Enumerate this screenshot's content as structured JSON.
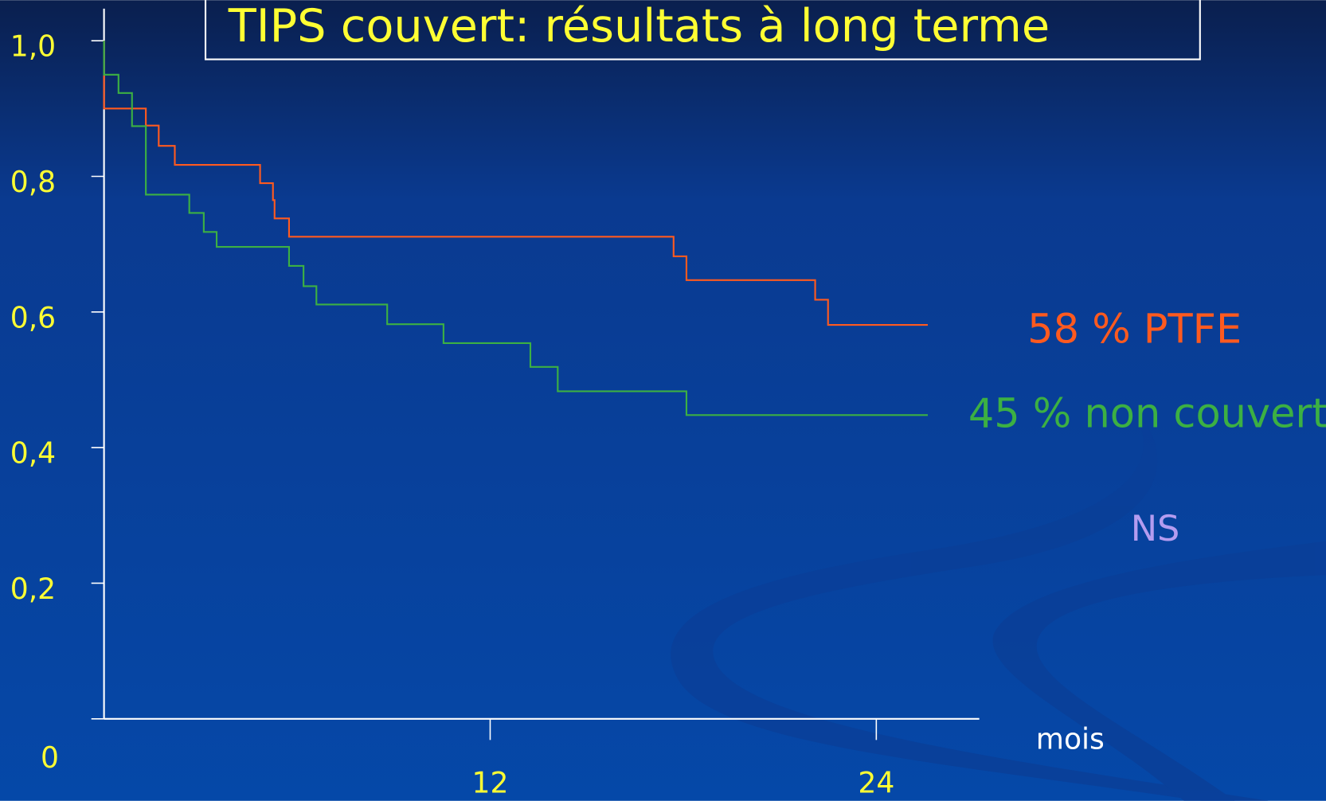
{
  "chart_data": {
    "type": "step",
    "title": "TIPS couvert: résultats à long terme",
    "x_label": "mois",
    "xlim": [
      0,
      27.2
    ],
    "xticks": [
      12,
      24
    ],
    "ylim": [
      0,
      1.0
    ],
    "yticks": [
      {
        "value": 1.0,
        "label": "1,0"
      },
      {
        "value": 0.8,
        "label": "0,8"
      },
      {
        "value": 0.6,
        "label": "0,6"
      },
      {
        "value": 0.4,
        "label": "0,4"
      },
      {
        "value": 0.2,
        "label": "0,2"
      },
      0
    ],
    "grid": false,
    "series": [
      {
        "name": "PTFE",
        "color": "#ff5a1f",
        "x": [
          0,
          0,
          1.3,
          1.7,
          2.2,
          4.85,
          5.25,
          5.3,
          5.75,
          17.7,
          18.1,
          22.1,
          22.5,
          25.6
        ],
        "values": [
          1.0,
          0.9,
          0.875,
          0.845,
          0.817,
          0.79,
          0.765,
          0.738,
          0.711,
          0.682,
          0.647,
          0.618,
          0.581,
          0.581
        ]
      },
      {
        "name": "non couvert",
        "color": "#3cb043",
        "x": [
          0,
          0,
          0.45,
          0.87,
          1.3,
          2.65,
          3.1,
          3.5,
          5.75,
          6.2,
          6.6,
          8.8,
          10.55,
          13.25,
          14.1,
          18.1,
          25.6
        ],
        "values": [
          1.0,
          0.95,
          0.923,
          0.874,
          0.773,
          0.746,
          0.718,
          0.696,
          0.668,
          0.638,
          0.611,
          0.582,
          0.554,
          0.519,
          0.483,
          0.448,
          0.448
        ]
      }
    ],
    "annotations": [
      {
        "text": "58 % PTFE",
        "color": "#ff5a1f"
      },
      {
        "text": "45 % non couvert",
        "color": "#3cb043"
      },
      {
        "text": "NS",
        "color": "#b49cf0"
      }
    ]
  }
}
